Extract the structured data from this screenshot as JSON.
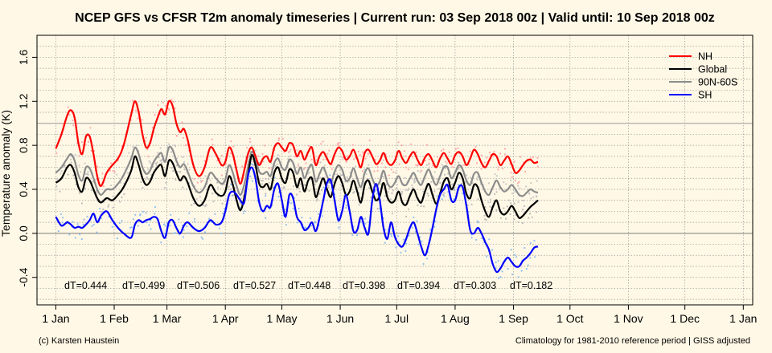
{
  "chart_data": {
    "type": "line",
    "title": "NCEP GFS vs CFSR T2m anomaly timeseries | Current run: 03 Sep 2018 00z | Valid until: 10 Sep 2018 00z",
    "ylabel": "Temperature anomaly (K)",
    "xlabel": "",
    "ylim": [
      -0.65,
      1.8
    ],
    "xlim": [
      -10,
      370
    ],
    "y_ticks": [
      -0.4,
      0.0,
      0.4,
      0.8,
      1.2,
      1.6
    ],
    "y_tick_labels": [
      "-0.4",
      "0.0",
      "0.4",
      "0.8",
      "1.2",
      "1.6"
    ],
    "x_ticks": [
      0,
      31,
      59,
      90,
      120,
      151,
      181,
      212,
      243,
      273,
      304,
      334,
      365
    ],
    "x_tick_labels": [
      "1 Jan",
      "1 Feb",
      "1 Mar",
      "1 Apr",
      "1 May",
      "1 Jun",
      "1 Jul",
      "1 Aug",
      "1 Sep",
      "1 Oct",
      "1 Nov",
      "1 Dec",
      "1 Jan"
    ],
    "grid": true,
    "legend_position": "top-right",
    "series": [
      {
        "name": "NH",
        "color": "#ff0000",
        "x": [
          0,
          3,
          6,
          8,
          10,
          12,
          14,
          16,
          18,
          20,
          22,
          24,
          27,
          30,
          33,
          36,
          40,
          42,
          44,
          46,
          48,
          50,
          52,
          54,
          56,
          58,
          60,
          62,
          64,
          66,
          68,
          70,
          73,
          76,
          79,
          82,
          85,
          88,
          90,
          92,
          94,
          96,
          98,
          100,
          102,
          104,
          106,
          108,
          110,
          112,
          114,
          116,
          118,
          120,
          122,
          124,
          126,
          128,
          130,
          132,
          134,
          136,
          138,
          140,
          142,
          144,
          146,
          148,
          150,
          152,
          154,
          156,
          158,
          160,
          162,
          164,
          166,
          168,
          170,
          172,
          174,
          176,
          178,
          180,
          182,
          184,
          186,
          188,
          190,
          192,
          194,
          196,
          198,
          200,
          202,
          204,
          206,
          208,
          210,
          212,
          214,
          216,
          218,
          220,
          222,
          224,
          226,
          228,
          230,
          232,
          234,
          236,
          238,
          240,
          242,
          244,
          246,
          248,
          250,
          252,
          254,
          256
        ],
        "values": [
          0.77,
          0.9,
          1.07,
          1.12,
          1.05,
          0.82,
          0.72,
          0.88,
          0.88,
          0.72,
          0.52,
          0.43,
          0.55,
          0.62,
          0.68,
          0.8,
          1.08,
          1.2,
          1.1,
          0.9,
          0.78,
          0.82,
          0.95,
          1.05,
          1.13,
          1.08,
          1.2,
          1.16,
          1.0,
          0.92,
          0.95,
          0.85,
          0.62,
          0.52,
          0.6,
          0.78,
          0.72,
          0.62,
          0.65,
          0.78,
          0.72,
          0.57,
          0.45,
          0.57,
          0.72,
          0.78,
          0.7,
          0.62,
          0.68,
          0.7,
          0.65,
          0.78,
          0.82,
          0.78,
          0.75,
          0.82,
          0.8,
          0.7,
          0.75,
          0.67,
          0.74,
          0.78,
          0.62,
          0.7,
          0.74,
          0.68,
          0.63,
          0.72,
          0.78,
          0.75,
          0.67,
          0.7,
          0.76,
          0.68,
          0.6,
          0.73,
          0.76,
          0.7,
          0.63,
          0.66,
          0.73,
          0.65,
          0.62,
          0.66,
          0.75,
          0.68,
          0.64,
          0.7,
          0.74,
          0.67,
          0.62,
          0.69,
          0.72,
          0.66,
          0.6,
          0.68,
          0.73,
          0.68,
          0.63,
          0.71,
          0.74,
          0.7,
          0.62,
          0.68,
          0.76,
          0.72,
          0.64,
          0.6,
          0.66,
          0.72,
          0.7,
          0.62,
          0.66,
          0.7,
          0.63,
          0.55,
          0.57,
          0.62,
          0.66,
          0.67,
          0.64,
          0.65
        ]
      },
      {
        "name": "Global",
        "color": "#000000",
        "x": [
          0,
          3,
          6,
          8,
          10,
          12,
          14,
          16,
          18,
          20,
          22,
          24,
          27,
          30,
          33,
          36,
          40,
          42,
          44,
          46,
          48,
          50,
          52,
          54,
          56,
          58,
          60,
          62,
          64,
          66,
          68,
          70,
          73,
          76,
          79,
          82,
          85,
          88,
          90,
          92,
          94,
          96,
          98,
          100,
          102,
          104,
          106,
          108,
          110,
          112,
          114,
          116,
          118,
          120,
          122,
          124,
          126,
          128,
          130,
          132,
          134,
          136,
          138,
          140,
          142,
          144,
          146,
          148,
          150,
          152,
          154,
          156,
          158,
          160,
          162,
          164,
          166,
          168,
          170,
          172,
          174,
          176,
          178,
          180,
          182,
          184,
          186,
          188,
          190,
          192,
          194,
          196,
          198,
          200,
          202,
          204,
          206,
          208,
          210,
          212,
          214,
          216,
          218,
          220,
          222,
          224,
          226,
          228,
          230,
          232,
          234,
          236,
          238,
          240,
          242,
          244,
          246,
          248,
          250,
          252,
          254,
          256
        ],
        "values": [
          0.46,
          0.5,
          0.6,
          0.62,
          0.55,
          0.42,
          0.38,
          0.5,
          0.48,
          0.4,
          0.32,
          0.28,
          0.32,
          0.3,
          0.35,
          0.42,
          0.57,
          0.7,
          0.62,
          0.5,
          0.44,
          0.47,
          0.55,
          0.6,
          0.62,
          0.52,
          0.66,
          0.64,
          0.55,
          0.48,
          0.52,
          0.46,
          0.32,
          0.25,
          0.3,
          0.44,
          0.37,
          0.34,
          0.38,
          0.52,
          0.44,
          0.3,
          0.21,
          0.32,
          0.52,
          0.71,
          0.62,
          0.45,
          0.42,
          0.45,
          0.4,
          0.55,
          0.6,
          0.5,
          0.46,
          0.58,
          0.55,
          0.42,
          0.5,
          0.38,
          0.48,
          0.5,
          0.33,
          0.42,
          0.5,
          0.4,
          0.33,
          0.45,
          0.52,
          0.46,
          0.35,
          0.38,
          0.48,
          0.38,
          0.28,
          0.44,
          0.48,
          0.38,
          0.3,
          0.34,
          0.46,
          0.33,
          0.28,
          0.3,
          0.38,
          0.28,
          0.26,
          0.34,
          0.4,
          0.32,
          0.28,
          0.38,
          0.45,
          0.35,
          0.27,
          0.36,
          0.47,
          0.5,
          0.4,
          0.46,
          0.55,
          0.5,
          0.36,
          0.32,
          0.44,
          0.42,
          0.3,
          0.2,
          0.15,
          0.24,
          0.3,
          0.2,
          0.17,
          0.2,
          0.25,
          0.2,
          0.14,
          0.16,
          0.2,
          0.24,
          0.27,
          0.3
        ]
      },
      {
        "name": "90N-60S",
        "color": "#8c8c8c",
        "x": [
          0,
          3,
          6,
          8,
          10,
          12,
          14,
          16,
          18,
          20,
          22,
          24,
          27,
          30,
          33,
          36,
          40,
          42,
          44,
          46,
          48,
          50,
          52,
          54,
          56,
          58,
          60,
          62,
          64,
          66,
          68,
          70,
          73,
          76,
          79,
          82,
          85,
          88,
          90,
          92,
          94,
          96,
          98,
          100,
          102,
          104,
          106,
          108,
          110,
          112,
          114,
          116,
          118,
          120,
          122,
          124,
          126,
          128,
          130,
          132,
          134,
          136,
          138,
          140,
          142,
          144,
          146,
          148,
          150,
          152,
          154,
          156,
          158,
          160,
          162,
          164,
          166,
          168,
          170,
          172,
          174,
          176,
          178,
          180,
          182,
          184,
          186,
          188,
          190,
          192,
          194,
          196,
          198,
          200,
          202,
          204,
          206,
          208,
          210,
          212,
          214,
          216,
          218,
          220,
          222,
          224,
          226,
          228,
          230,
          232,
          234,
          236,
          238,
          240,
          242,
          244,
          246,
          248,
          250,
          252,
          254,
          256
        ],
        "values": [
          0.55,
          0.6,
          0.68,
          0.72,
          0.66,
          0.53,
          0.48,
          0.6,
          0.59,
          0.5,
          0.4,
          0.35,
          0.4,
          0.4,
          0.45,
          0.53,
          0.68,
          0.78,
          0.72,
          0.6,
          0.54,
          0.57,
          0.65,
          0.7,
          0.73,
          0.65,
          0.78,
          0.76,
          0.66,
          0.6,
          0.63,
          0.56,
          0.43,
          0.37,
          0.42,
          0.55,
          0.5,
          0.45,
          0.49,
          0.62,
          0.55,
          0.43,
          0.35,
          0.44,
          0.6,
          0.74,
          0.68,
          0.56,
          0.54,
          0.56,
          0.52,
          0.64,
          0.68,
          0.6,
          0.58,
          0.67,
          0.64,
          0.54,
          0.6,
          0.5,
          0.58,
          0.62,
          0.47,
          0.54,
          0.6,
          0.52,
          0.46,
          0.56,
          0.62,
          0.58,
          0.48,
          0.5,
          0.59,
          0.5,
          0.42,
          0.55,
          0.59,
          0.5,
          0.43,
          0.47,
          0.57,
          0.46,
          0.42,
          0.46,
          0.52,
          0.45,
          0.44,
          0.5,
          0.55,
          0.48,
          0.44,
          0.52,
          0.58,
          0.5,
          0.44,
          0.52,
          0.6,
          0.6,
          0.5,
          0.55,
          0.62,
          0.58,
          0.48,
          0.44,
          0.54,
          0.55,
          0.46,
          0.38,
          0.35,
          0.42,
          0.48,
          0.42,
          0.38,
          0.4,
          0.44,
          0.4,
          0.35,
          0.34,
          0.37,
          0.4,
          0.38,
          0.37
        ]
      },
      {
        "name": "SH",
        "color": "#0000ff",
        "x": [
          0,
          3,
          6,
          8,
          10,
          12,
          14,
          16,
          18,
          20,
          22,
          24,
          27,
          30,
          33,
          36,
          40,
          42,
          44,
          46,
          48,
          50,
          52,
          54,
          56,
          58,
          60,
          62,
          64,
          66,
          68,
          70,
          73,
          76,
          79,
          82,
          85,
          88,
          90,
          92,
          94,
          96,
          98,
          100,
          102,
          104,
          106,
          108,
          110,
          112,
          114,
          116,
          118,
          120,
          122,
          124,
          126,
          128,
          130,
          132,
          134,
          136,
          138,
          140,
          142,
          144,
          146,
          148,
          150,
          152,
          154,
          156,
          158,
          160,
          162,
          164,
          166,
          168,
          170,
          172,
          174,
          176,
          178,
          180,
          182,
          184,
          186,
          188,
          190,
          192,
          194,
          196,
          198,
          200,
          202,
          204,
          206,
          208,
          210,
          212,
          214,
          216,
          218,
          220,
          222,
          224,
          226,
          228,
          230,
          232,
          234,
          236,
          238,
          240,
          242,
          244,
          246,
          248,
          250,
          252,
          254,
          256
        ],
        "values": [
          0.15,
          0.07,
          0.1,
          0.08,
          0.05,
          0.06,
          0.05,
          0.08,
          0.12,
          0.18,
          0.1,
          0.16,
          0.2,
          0.12,
          0.05,
          0.0,
          -0.04,
          0.08,
          0.12,
          0.1,
          0.12,
          0.13,
          0.15,
          0.13,
          0.02,
          -0.04,
          0.1,
          0.12,
          0.05,
          0.0,
          0.07,
          0.1,
          0.05,
          0.02,
          0.05,
          0.12,
          0.08,
          0.1,
          0.2,
          0.35,
          0.38,
          0.35,
          0.3,
          0.28,
          0.52,
          0.6,
          0.5,
          0.28,
          0.2,
          0.25,
          0.24,
          0.4,
          0.45,
          0.3,
          0.15,
          0.35,
          0.32,
          0.15,
          0.1,
          0.03,
          0.05,
          0.1,
          0.02,
          0.14,
          0.3,
          0.46,
          0.48,
          0.3,
          0.12,
          0.2,
          0.35,
          0.2,
          0.02,
          0.03,
          0.15,
          0.05,
          0.0,
          0.3,
          0.45,
          0.3,
          0.05,
          -0.05,
          0.1,
          -0.03,
          -0.1,
          -0.12,
          -0.05,
          0.05,
          0.1,
          0.0,
          -0.12,
          -0.2,
          -0.1,
          0.05,
          0.22,
          0.35,
          0.4,
          0.44,
          0.3,
          0.3,
          0.42,
          0.42,
          0.25,
          0.03,
          0.0,
          0.05,
          0.0,
          -0.08,
          -0.15,
          -0.28,
          -0.35,
          -0.32,
          -0.26,
          -0.22,
          -0.26,
          -0.3,
          -0.3,
          -0.25,
          -0.22,
          -0.18,
          -0.13,
          -0.12
        ]
      }
    ],
    "annotations": [
      "dT=0.444",
      "dT=0.499",
      "dT=0.506",
      "dT=0.527",
      "dT=0.448",
      "dT=0.398",
      "dT=0.394",
      "dT=0.303",
      "dT=0.182"
    ]
  },
  "footer": {
    "left": "(c) Karsten Haustein",
    "right": "Climatology for 1981-2010 reference period | GISS adjusted"
  }
}
